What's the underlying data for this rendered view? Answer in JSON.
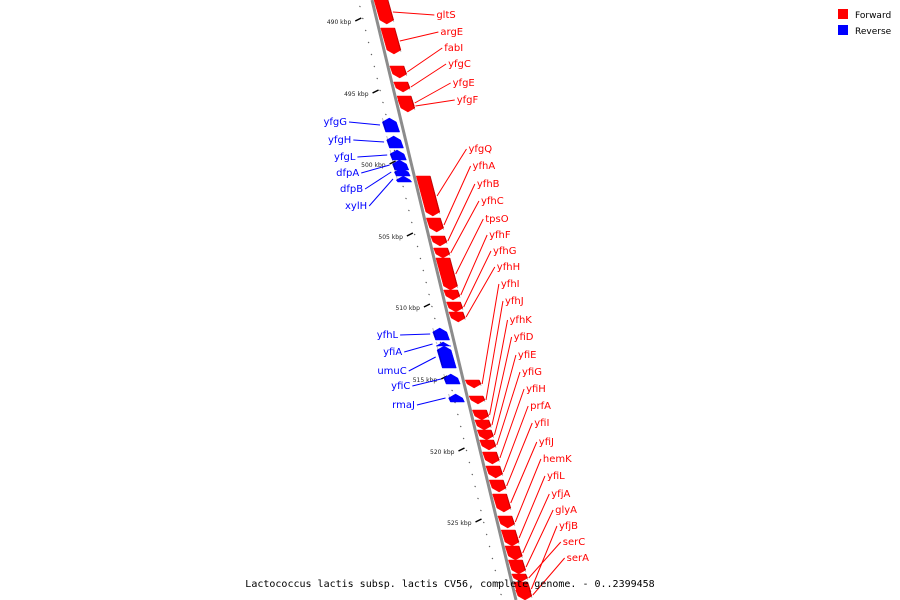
{
  "footer_text": "Lactococcus lactis subsp. lactis CV56, complete genome. - 0..2399458",
  "legend": [
    {
      "label": "Forward",
      "color": "#ff0000"
    },
    {
      "label": "Reverse",
      "color": "#0000ff"
    }
  ],
  "colors": {
    "forward": "#ff0000",
    "reverse": "#0000ff",
    "backbone": "#8c8c8c"
  },
  "kbp_marks": [
    "490 kbp",
    "495 kbp",
    "500 kbp",
    "505 kbp",
    "510 kbp",
    "515 kbp",
    "520 kbp",
    "525 kbp"
  ],
  "forward_genes": [
    "gltS",
    "argE",
    "fabI",
    "yfgC",
    "yfgE",
    "yfgF",
    "yfgQ",
    "yfhA",
    "yfhB",
    "yfhC",
    "tpsO",
    "yfhF",
    "yfhG",
    "yfhH",
    "yfhI",
    "yfhJ",
    "yfhK",
    "yfiD",
    "yfiE",
    "yfiG",
    "yfiH",
    "prfA",
    "yfiI",
    "yfiJ",
    "hemK",
    "yfiL",
    "yfjA",
    "glyA",
    "yfjB",
    "serC",
    "serA"
  ],
  "reverse_genes": [
    "yfgG",
    "yfgH",
    "yfgL",
    "dfpA",
    "dfpB",
    "xylH",
    "yfhL",
    "yfiA",
    "umuC",
    "yfiC",
    "rmaJ"
  ]
}
